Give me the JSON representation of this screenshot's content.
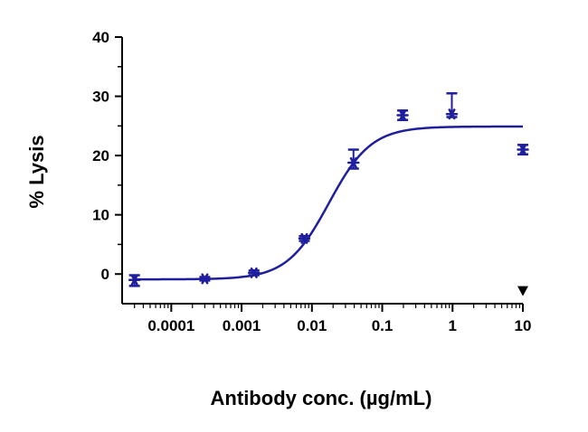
{
  "chart_data": {
    "type": "scatter",
    "xlabel": "Antibody conc. (µg/mL)",
    "ylabel": "% Lysis",
    "xscale": "log",
    "xlim": [
      2e-05,
      10
    ],
    "ylim": [
      -5,
      40
    ],
    "x_tick_values": [
      0.0001,
      0.001,
      0.01,
      0.1,
      1,
      10
    ],
    "x_tick_labels": [
      "0.0001",
      "0.001",
      "0.01",
      "0.1",
      "1",
      "10"
    ],
    "y_tick_values": [
      0,
      10,
      20,
      30,
      40
    ],
    "y_tick_labels": [
      "0",
      "10",
      "20",
      "30",
      "40"
    ],
    "grid": false,
    "color": "#1f1f9e",
    "series": [
      {
        "points": [
          {
            "x": 3e-05,
            "y": -1.0,
            "err_low": 1.0,
            "err_high": 0.8
          },
          {
            "x": 0.0003,
            "y": -0.8,
            "err_low": 0.3,
            "err_high": 0.3
          },
          {
            "x": 0.0015,
            "y": 0.2,
            "err_low": 0.4,
            "err_high": 0.4
          },
          {
            "x": 0.0078,
            "y": 6.0,
            "err_low": 0.4,
            "err_high": 0.4
          },
          {
            "x": 0.039,
            "y": 18.8,
            "err_low": 1.0,
            "err_high": 2.2
          },
          {
            "x": 0.195,
            "y": 26.8,
            "err_low": 0.8,
            "err_high": 0.8
          },
          {
            "x": 0.977,
            "y": 27.0,
            "err_low": 0.5,
            "err_high": 3.5
          },
          {
            "x": 10,
            "y": 21.0,
            "err_low": 0.8,
            "err_high": 0.8
          }
        ],
        "fit": {
          "model": "4PL",
          "bottom": -0.9,
          "top": 24.9,
          "ec50": 0.0175,
          "hill": 1.45,
          "x_range": [
            3e-05,
            10
          ]
        }
      }
    ],
    "annotations": [
      {
        "type": "marker",
        "shape": "triangle-down",
        "x": 10,
        "y": -2.8
      }
    ]
  }
}
